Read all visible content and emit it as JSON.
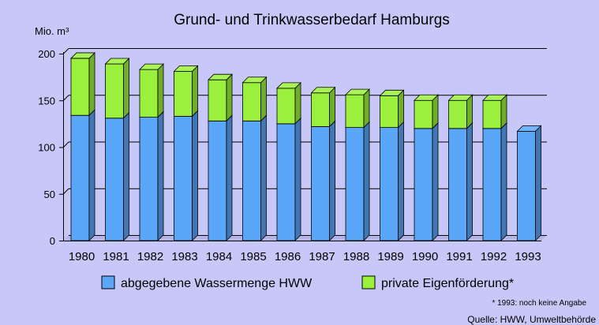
{
  "chart_data": {
    "type": "bar",
    "stacked": true,
    "title": "Grund- und Trinkwasserbedarf Hamburgs",
    "ylabel": "Mio. m³",
    "ylim": [
      0,
      200
    ],
    "yticks": [
      0,
      50,
      100,
      150,
      200
    ],
    "categories": [
      "1980",
      "1981",
      "1982",
      "1983",
      "1984",
      "1985",
      "1986",
      "1987",
      "1988",
      "1989",
      "1990",
      "1991",
      "1992",
      "1993"
    ],
    "series": [
      {
        "name": "abgegebene Wassermenge HWW",
        "color": "#5aa6f8",
        "values": [
          134,
          131,
          132,
          133,
          128,
          128,
          125,
          122,
          121,
          121,
          120,
          120,
          120,
          117
        ]
      },
      {
        "name": "private Eigenförderung*",
        "color": "#9af03c",
        "values": [
          61,
          58,
          51,
          48,
          44,
          41,
          38,
          36,
          35,
          34,
          30,
          30,
          30,
          null
        ]
      }
    ],
    "grid": true,
    "legend": "bottom",
    "footnote": "* 1993: noch keine Angabe",
    "source": "Quelle: HWW, Umweltbehörde"
  }
}
